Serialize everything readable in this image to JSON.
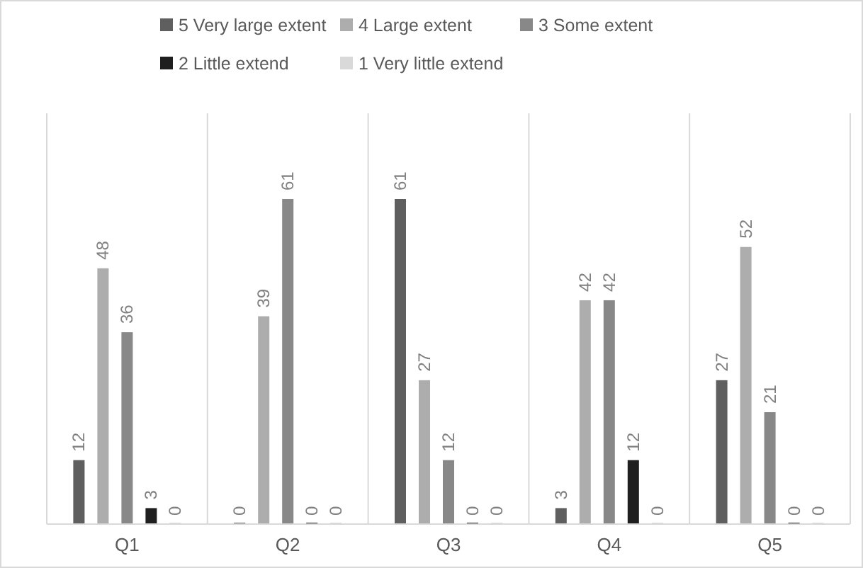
{
  "chart_data": {
    "type": "bar",
    "categories": [
      "Q1",
      "Q2",
      "Q3",
      "Q4",
      "Q5"
    ],
    "series": [
      {
        "name": "5 Very large extent",
        "color": "#5f5f5f",
        "values": [
          12,
          0,
          61,
          3,
          27
        ]
      },
      {
        "name": "4 Large extent",
        "color": "#adadad",
        "values": [
          48,
          39,
          27,
          42,
          52
        ]
      },
      {
        "name": "3 Some extent",
        "color": "#888888",
        "values": [
          36,
          61,
          12,
          42,
          21
        ]
      },
      {
        "name": "2 Little extend",
        "color": "#1f1f1f",
        "values": [
          3,
          0,
          0,
          12,
          0
        ]
      },
      {
        "name": "1 Very little extend",
        "color": "#d9d9d9",
        "values": [
          0,
          0,
          0,
          0,
          0
        ]
      }
    ],
    "data_labels": true,
    "legend": "top",
    "grid": "x",
    "tick_labels": "x"
  }
}
